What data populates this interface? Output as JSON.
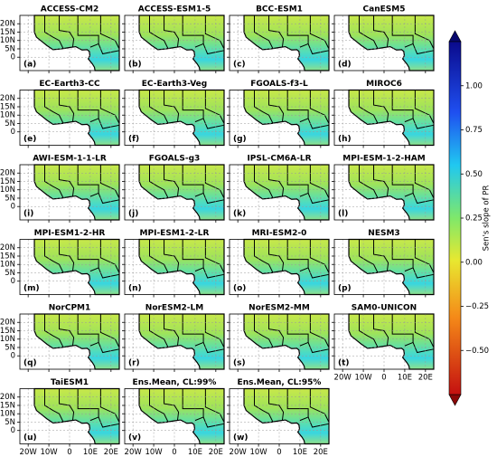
{
  "panels": [
    {
      "title": "ACCESS-CM2",
      "label": "(a)"
    },
    {
      "title": "ACCESS-ESM1-5",
      "label": "(b)"
    },
    {
      "title": "BCC-ESM1",
      "label": "(c)"
    },
    {
      "title": "CanESM5",
      "label": "(d)"
    },
    {
      "title": "EC-Earth3-CC",
      "label": "(e)"
    },
    {
      "title": "EC-Earth3-Veg",
      "label": "(f)"
    },
    {
      "title": "FGOALS-f3-L",
      "label": "(g)"
    },
    {
      "title": "MIROC6",
      "label": "(h)"
    },
    {
      "title": "AWI-ESM-1-1-LR",
      "label": "(i)"
    },
    {
      "title": "FGOALS-g3",
      "label": "(j)"
    },
    {
      "title": "IPSL-CM6A-LR",
      "label": "(k)"
    },
    {
      "title": "MPI-ESM-1-2-HAM",
      "label": "(l)"
    },
    {
      "title": "MPI-ESM1-2-HR",
      "label": "(m)"
    },
    {
      "title": "MPI-ESM1-2-LR",
      "label": "(n)"
    },
    {
      "title": "MRI-ESM2-0",
      "label": "(o)"
    },
    {
      "title": "NESM3",
      "label": "(p)"
    },
    {
      "title": "NorCPM1",
      "label": "(q)"
    },
    {
      "title": "NorESM2-LM",
      "label": "(r)"
    },
    {
      "title": "NorESM2-MM",
      "label": "(s)"
    },
    {
      "title": "SAM0-UNICON",
      "label": "(t)"
    },
    {
      "title": "TaiESM1",
      "label": "(u)"
    },
    {
      "title": "Ens.Mean, CL:99%",
      "label": "(v)"
    },
    {
      "title": "Ens.Mean, CL:95%",
      "label": "(w)"
    }
  ],
  "map": {
    "lonlim": [
      -24,
      24
    ],
    "latlim": [
      -8,
      25
    ],
    "lat_ticks": [
      {
        "value": 20,
        "label": "20N"
      },
      {
        "value": 15,
        "label": "15N"
      },
      {
        "value": 10,
        "label": "10N"
      },
      {
        "value": 5,
        "label": "5N"
      },
      0
    ],
    "lon_ticks": [
      {
        "value": -20,
        "label": "20W"
      },
      {
        "value": -10,
        "label": "10W"
      },
      0,
      {
        "value": 10,
        "label": "10E"
      },
      {
        "value": 20,
        "label": "20E"
      }
    ]
  },
  "colorbar": {
    "label": "Sen's slope of PR",
    "lim": [
      -0.75,
      1.25
    ],
    "ticks": [
      {
        "value": 1,
        "label": "1.00"
      },
      {
        "value": 0.75,
        "label": "0.75"
      },
      {
        "value": 0.5,
        "label": "0.50"
      },
      {
        "value": 0.25,
        "label": "0.25"
      },
      {
        "value": 0,
        "label": "0.00"
      },
      {
        "value": -0.25,
        "label": "−0.25"
      },
      {
        "value": -0.5,
        "label": "−0.50"
      }
    ]
  }
}
